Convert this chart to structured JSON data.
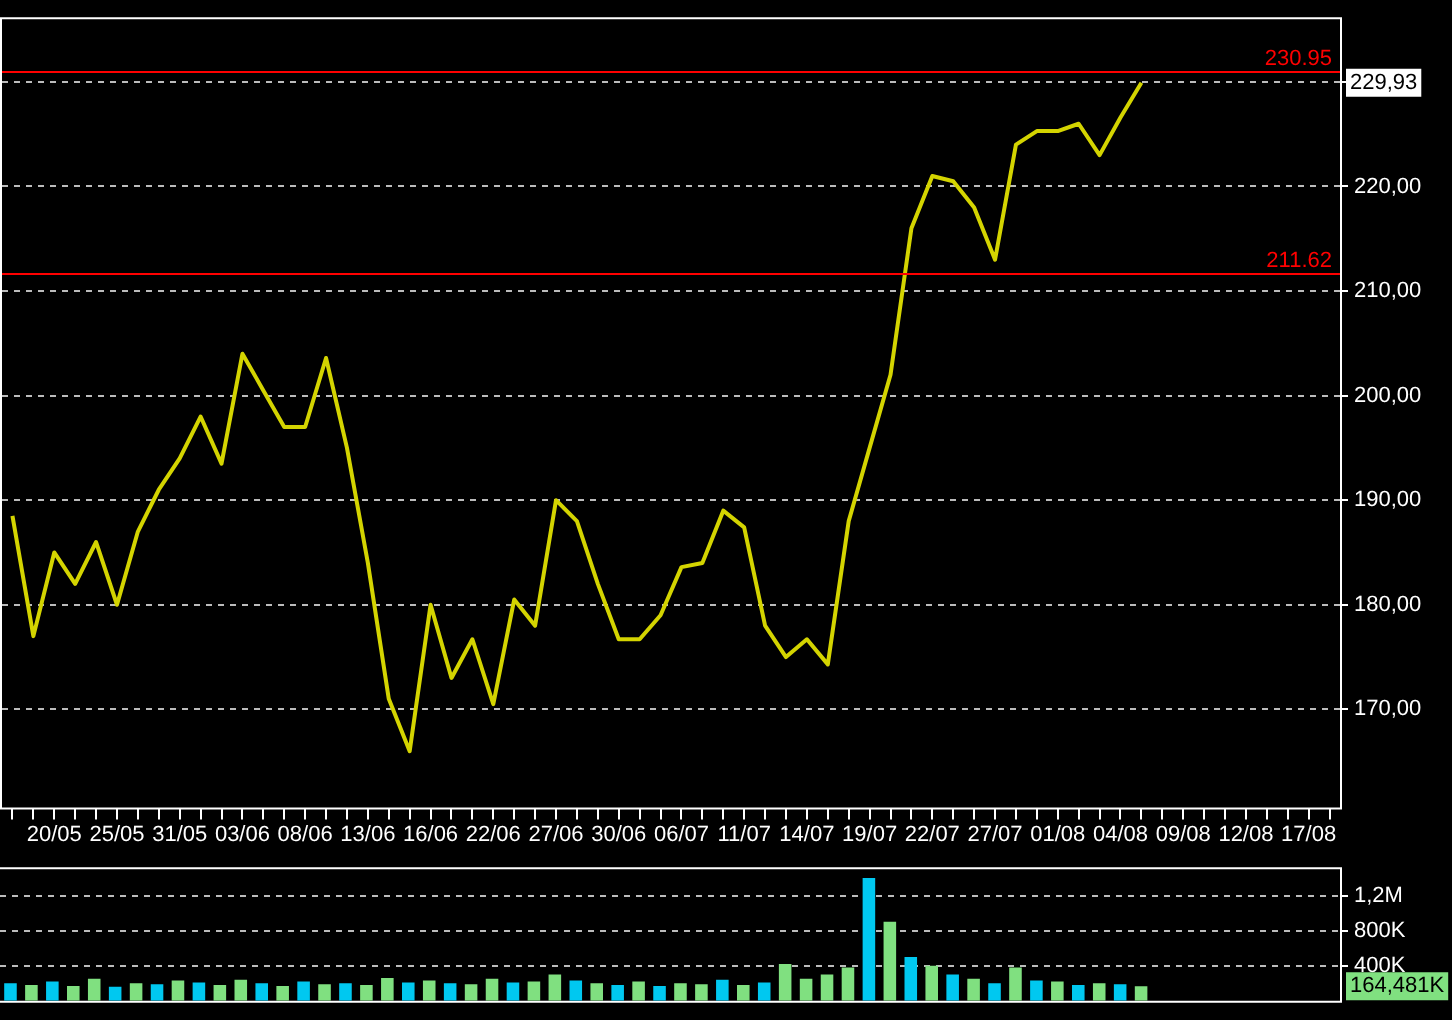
{
  "chart_data": [
    {
      "type": "line",
      "categories": [
        null,
        null,
        "20/05",
        null,
        null,
        "25/05",
        null,
        null,
        "31/05",
        null,
        null,
        "03/06",
        null,
        null,
        "08/06",
        null,
        null,
        "13/06",
        null,
        null,
        "16/06",
        null,
        null,
        "22/06",
        null,
        null,
        "27/06",
        null,
        null,
        "30/06",
        null,
        null,
        "06/07",
        null,
        null,
        "11/07",
        null,
        null,
        "14/07",
        null,
        null,
        "19/07",
        null,
        null,
        "22/07",
        null,
        null,
        "27/07",
        null,
        null,
        "01/08",
        null,
        null,
        "04/08",
        null,
        null,
        "09/08",
        null,
        null,
        "12/08",
        null,
        null,
        "17/08",
        null
      ],
      "series": [
        {
          "color": "#d4d400",
          "values": [
            188.5,
            177,
            185,
            182,
            186,
            180,
            187,
            191,
            194,
            198,
            193.5,
            204,
            200.5,
            197,
            197,
            203.6,
            195,
            184,
            171,
            166,
            180,
            173,
            176.7,
            170.5,
            180.5,
            178,
            190,
            188,
            182,
            176.7,
            176.7,
            179,
            183.6,
            184,
            189,
            187.4,
            178,
            175,
            176.7,
            174.3,
            188,
            195,
            202,
            216,
            221,
            220.5,
            218,
            213,
            224,
            225.3,
            225.3,
            226,
            223,
            226.6,
            229.93,
            null,
            null,
            null,
            null,
            null,
            null,
            null,
            null,
            null
          ]
        }
      ],
      "ylim": [
        160.6,
        236
      ],
      "yticks": [
        {
          "value": 170,
          "label": "170,00"
        },
        {
          "value": 180,
          "label": "180,00"
        },
        {
          "value": 190,
          "label": "190,00"
        },
        {
          "value": 200,
          "label": "200,00"
        },
        {
          "value": 210,
          "label": "210,00"
        },
        {
          "value": 220,
          "label": "220,00"
        },
        {
          "value": 230,
          "label": null
        }
      ],
      "grid": "y",
      "ref_lines": [
        {
          "axis": "y",
          "value": 230.95,
          "label": "230.95",
          "color": "#ff0000"
        },
        {
          "axis": "y",
          "value": 211.62,
          "label": "211.62",
          "color": "#ff0000"
        }
      ],
      "annotations": [
        {
          "text": "229,93",
          "y": 229.93
        }
      ]
    },
    {
      "type": "bar",
      "values": [
        200000,
        180000,
        220000,
        170000,
        250000,
        160000,
        200000,
        190000,
        230000,
        210000,
        180000,
        240000,
        200000,
        170000,
        220000,
        190000,
        200000,
        180000,
        260000,
        210000,
        230000,
        200000,
        190000,
        250000,
        210000,
        220000,
        300000,
        230000,
        200000,
        180000,
        220000,
        170000,
        200000,
        190000,
        240000,
        180000,
        210000,
        420000,
        250000,
        300000,
        380000,
        1400000,
        900000,
        500000,
        400000,
        300000,
        250000,
        200000,
        380000,
        230000,
        220000,
        180000,
        200000,
        190000,
        164481,
        null,
        null,
        null,
        null,
        null,
        null,
        null,
        null,
        null
      ],
      "colors": [
        "#00c8f0",
        "#80e080",
        "#00c8f0",
        "#80e080",
        "#80e080",
        "#00c8f0",
        "#80e080",
        "#00c8f0",
        "#80e080",
        "#00c8f0",
        "#80e080",
        "#80e080",
        "#00c8f0",
        "#80e080",
        "#00c8f0",
        "#80e080",
        "#00c8f0",
        "#80e080",
        "#80e080",
        "#00c8f0",
        "#80e080",
        "#00c8f0",
        "#80e080",
        "#80e080",
        "#00c8f0",
        "#80e080",
        "#80e080",
        "#00c8f0",
        "#80e080",
        "#00c8f0",
        "#80e080",
        "#00c8f0",
        "#80e080",
        "#80e080",
        "#00c8f0",
        "#80e080",
        "#00c8f0",
        "#80e080",
        "#80e080",
        "#80e080",
        "#80e080",
        "#00c8f0",
        "#80e080",
        "#00c8f0",
        "#80e080",
        "#00c8f0",
        "#80e080",
        "#00c8f0",
        "#80e080",
        "#00c8f0",
        "#80e080",
        "#00c8f0",
        "#80e080",
        "#00c8f0",
        "#80e080",
        "#80e080",
        "#80e080",
        "#80e080",
        "#80e080",
        "#80e080",
        "#80e080",
        "#80e080",
        "#80e080",
        "#80e080"
      ],
      "ylim": [
        0,
        1500000
      ],
      "yticks": [
        {
          "value": 400000,
          "label": "400K"
        },
        {
          "value": 800000,
          "label": "800K"
        },
        {
          "value": 1200000,
          "label": "1,2M"
        }
      ],
      "grid": "y",
      "tick_labels": "y",
      "annotations": [
        "164,481K"
      ]
    }
  ]
}
